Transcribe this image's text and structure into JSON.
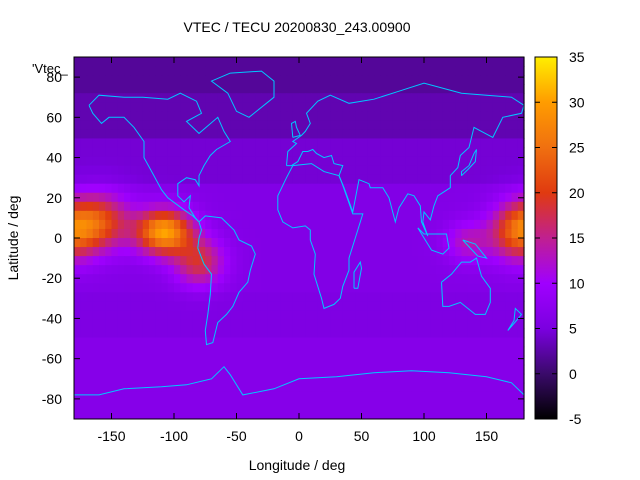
{
  "chart_data": {
    "type": "heatmap",
    "title": "VTEC / TECU 20200830_243.00900",
    "xlabel": "Longitude / deg",
    "ylabel": "Latitude / deg",
    "legend_label": "'Vtec_",
    "xlim": [
      -180,
      180
    ],
    "ylim": [
      -90,
      90
    ],
    "x_ticks": [
      -150,
      -100,
      -50,
      0,
      50,
      100,
      150
    ],
    "y_ticks": [
      -80,
      -60,
      -40,
      -20,
      0,
      20,
      40,
      60,
      80
    ],
    "colorbar": {
      "range": [
        -5,
        35
      ],
      "ticks": [
        -5,
        0,
        5,
        10,
        15,
        20,
        25,
        30,
        35
      ],
      "palette": [
        "#000000",
        "#3a0a6a",
        "#7b00e0",
        "#a000ff",
        "#c02090",
        "#e03a10",
        "#f07010",
        "#ff9c00",
        "#ffee00"
      ]
    },
    "coastline_color": "#00c8ff",
    "field": {
      "lat_step": 4.5,
      "lon_step": 5,
      "background_levels": [
        {
          "lat_min": 70,
          "lat_max": 90,
          "value": 2
        },
        {
          "lat_min": 50,
          "lat_max": 70,
          "value": 3
        },
        {
          "lat_min": 25,
          "lat_max": 50,
          "value": 4.5
        },
        {
          "lat_min": -25,
          "lat_max": 25,
          "value": 6
        },
        {
          "lat_min": -50,
          "lat_max": -25,
          "value": 5.5
        },
        {
          "lat_min": -90,
          "lat_max": -50,
          "value": 6.5
        }
      ],
      "hotspots": [
        {
          "lon": -108,
          "lat": 3,
          "amp": 24,
          "slon": 22,
          "slat": 11
        },
        {
          "lon": -160,
          "lat": 8,
          "amp": 15,
          "slon": 25,
          "slat": 14
        },
        {
          "lon": -80,
          "lat": -12,
          "amp": 12,
          "slon": 20,
          "slat": 12
        },
        {
          "lon": 175,
          "lat": 3,
          "amp": 16,
          "slon": 22,
          "slat": 14
        },
        {
          "lon": 135,
          "lat": -2,
          "amp": 7,
          "slon": 18,
          "slat": 10
        }
      ]
    }
  }
}
